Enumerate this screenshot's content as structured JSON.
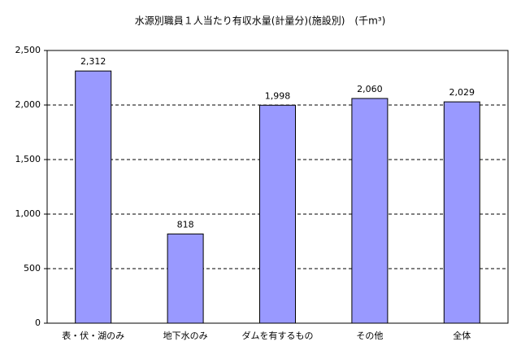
{
  "chart_data": {
    "type": "bar",
    "title": "水源別職員１人当たり有収水量(計量分)(施設別)　(千m³)",
    "categories": [
      "表・伏・湖のみ",
      "地下水のみ",
      "ダムを有するもの",
      "その他",
      "全体"
    ],
    "values": [
      2312,
      818,
      1998,
      2060,
      2029
    ],
    "value_labels": [
      "2,312",
      "818",
      "1,998",
      "2,060",
      "2,029"
    ],
    "color": "#9999ff",
    "ylim": [
      0,
      2500
    ],
    "yticks": [
      0,
      500,
      {
        "value": 1000,
        "label": "1,000"
      },
      {
        "value": 1500,
        "label": "1,500"
      },
      {
        "value": 2000,
        "label": "2,000"
      },
      {
        "value": 2500,
        "label": "2,500"
      }
    ],
    "grid": true
  }
}
